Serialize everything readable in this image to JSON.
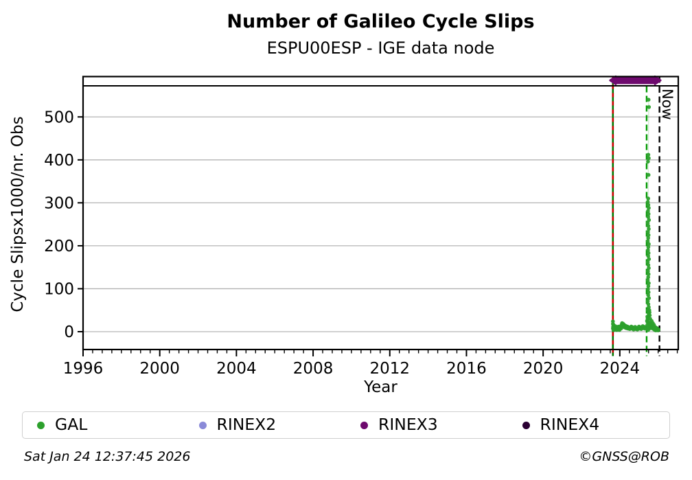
{
  "page": {
    "title": "Number of Galileo Cycle Slips",
    "subtitle": "ESPU00ESP - IGE data node",
    "footer_left": "Sat Jan 24 12:37:45 2026",
    "footer_right": "©GNSS@ROB"
  },
  "legend": {
    "items": [
      {
        "label": "GAL",
        "color": "#2ca02c"
      },
      {
        "label": "RINEX2",
        "color": "#8a8ad8"
      },
      {
        "label": "RINEX3",
        "color": "#6e0a6e"
      },
      {
        "label": "RINEX4",
        "color": "#2b0033"
      }
    ]
  },
  "chart_data": {
    "type": "scatter",
    "title": "Number of Galileo Cycle Slips",
    "subtitle": "ESPU00ESP - IGE data node",
    "xlabel": "Year",
    "ylabel": "Cycle Slipsx1000/nr. Obs",
    "x_ticks": [
      1996,
      2000,
      2004,
      2008,
      2012,
      2016,
      2020,
      2024
    ],
    "x_minor_step": 0.5,
    "x_range": [
      1996,
      2027.05
    ],
    "y_ticks": [
      0,
      100,
      200,
      300,
      400,
      500
    ],
    "y_range": [
      -41,
      572
    ],
    "grid": "horizontal-only",
    "grid_color": "#b3b3b3",
    "legend_position": "below",
    "now_label": "Now",
    "events": [
      {
        "name": "first-data",
        "year": 2023.64,
        "base_color": "#007700",
        "overlay_color": "#cc0000",
        "dash": [
          6,
          6
        ]
      },
      {
        "name": "file-change",
        "year": 2025.4,
        "base_color": "#009900",
        "overlay_color": null,
        "dash": [
          9,
          5
        ]
      },
      {
        "name": "now",
        "year": 2026.07,
        "base_color": "#000000",
        "overlay_color": null,
        "dash": [
          9,
          5.5
        ]
      }
    ],
    "availability_bar": {
      "name": "rinex3-span",
      "start": 2023.5,
      "end": 2026.12,
      "color": "#6e0a6e"
    },
    "series": [
      {
        "name": "GAL",
        "color": "#2ca02c",
        "marker_radius": 2.8,
        "points": [
          [
            2023.64,
            24
          ],
          [
            2023.64,
            18
          ],
          [
            2023.64,
            8
          ],
          [
            2023.65,
            12
          ],
          [
            2023.66,
            5
          ],
          [
            2023.67,
            16
          ],
          [
            2023.68,
            8
          ],
          [
            2023.7,
            4
          ],
          [
            2023.72,
            10
          ],
          [
            2023.74,
            6
          ],
          [
            2023.76,
            13
          ],
          [
            2023.78,
            7
          ],
          [
            2023.8,
            5
          ],
          [
            2023.82,
            9
          ],
          [
            2023.84,
            4
          ],
          [
            2023.86,
            11
          ],
          [
            2023.88,
            6
          ],
          [
            2023.9,
            8
          ],
          [
            2023.92,
            5
          ],
          [
            2023.94,
            12
          ],
          [
            2023.96,
            7
          ],
          [
            2023.98,
            4
          ],
          [
            2024.0,
            9
          ],
          [
            2024.02,
            6
          ],
          [
            2024.05,
            13
          ],
          [
            2024.08,
            8
          ],
          [
            2024.1,
            17
          ],
          [
            2024.12,
            20
          ],
          [
            2024.15,
            14
          ],
          [
            2024.18,
            18
          ],
          [
            2024.2,
            12
          ],
          [
            2024.22,
            16
          ],
          [
            2024.25,
            10
          ],
          [
            2024.28,
            14
          ],
          [
            2024.3,
            9
          ],
          [
            2024.33,
            13
          ],
          [
            2024.36,
            8
          ],
          [
            2024.4,
            12
          ],
          [
            2024.44,
            7
          ],
          [
            2024.48,
            10
          ],
          [
            2024.52,
            6
          ],
          [
            2024.56,
            9
          ],
          [
            2024.6,
            12
          ],
          [
            2024.64,
            7
          ],
          [
            2024.68,
            10
          ],
          [
            2024.72,
            5
          ],
          [
            2024.76,
            8
          ],
          [
            2024.8,
            11
          ],
          [
            2024.84,
            6
          ],
          [
            2024.88,
            9
          ],
          [
            2024.92,
            5
          ],
          [
            2024.96,
            8
          ],
          [
            2025.0,
            12
          ],
          [
            2025.04,
            7
          ],
          [
            2025.08,
            10
          ],
          [
            2025.12,
            6
          ],
          [
            2025.16,
            9
          ],
          [
            2025.2,
            13
          ],
          [
            2025.24,
            8
          ],
          [
            2025.28,
            11
          ],
          [
            2025.32,
            7
          ],
          [
            2025.36,
            10
          ],
          [
            2025.42,
            25
          ],
          [
            2025.43,
            15
          ],
          [
            2025.44,
            35
          ],
          [
            2025.45,
            22
          ],
          [
            2025.5,
            540
          ],
          [
            2025.52,
            523
          ],
          [
            2025.49,
            412
          ],
          [
            2025.51,
            404
          ],
          [
            2025.47,
            396
          ],
          [
            2025.5,
            365
          ],
          [
            2025.48,
            310
          ],
          [
            2025.46,
            302
          ],
          [
            2025.49,
            295
          ],
          [
            2025.51,
            288
          ],
          [
            2025.47,
            281
          ],
          [
            2025.5,
            274
          ],
          [
            2025.48,
            267
          ],
          [
            2025.52,
            260
          ],
          [
            2025.46,
            253
          ],
          [
            2025.49,
            246
          ],
          [
            2025.51,
            239
          ],
          [
            2025.47,
            232
          ],
          [
            2025.5,
            225
          ],
          [
            2025.48,
            218
          ],
          [
            2025.46,
            211
          ],
          [
            2025.51,
            204
          ],
          [
            2025.49,
            197
          ],
          [
            2025.47,
            190
          ],
          [
            2025.5,
            183
          ],
          [
            2025.48,
            176
          ],
          [
            2025.52,
            169
          ],
          [
            2025.46,
            162
          ],
          [
            2025.49,
            155
          ],
          [
            2025.51,
            148
          ],
          [
            2025.47,
            141
          ],
          [
            2025.5,
            134
          ],
          [
            2025.48,
            127
          ],
          [
            2025.46,
            120
          ],
          [
            2025.51,
            113
          ],
          [
            2025.49,
            106
          ],
          [
            2025.47,
            99
          ],
          [
            2025.5,
            92
          ],
          [
            2025.48,
            85
          ],
          [
            2025.52,
            78
          ],
          [
            2025.46,
            71
          ],
          [
            2025.49,
            64
          ],
          [
            2025.51,
            57
          ],
          [
            2025.47,
            50
          ],
          [
            2025.5,
            43
          ],
          [
            2025.48,
            36
          ],
          [
            2025.46,
            29
          ],
          [
            2025.49,
            22
          ],
          [
            2025.51,
            15
          ],
          [
            2025.5,
            8
          ],
          [
            2025.48,
            4
          ],
          [
            2025.54,
            50
          ],
          [
            2025.55,
            45
          ],
          [
            2025.56,
            38
          ],
          [
            2025.57,
            12
          ],
          [
            2025.58,
            30
          ],
          [
            2025.59,
            8
          ],
          [
            2025.6,
            20
          ],
          [
            2025.62,
            18
          ],
          [
            2025.64,
            10
          ],
          [
            2025.66,
            25
          ],
          [
            2025.68,
            15
          ],
          [
            2025.7,
            8
          ],
          [
            2025.72,
            20
          ],
          [
            2025.74,
            12
          ],
          [
            2025.76,
            6
          ],
          [
            2025.78,
            16
          ],
          [
            2025.8,
            9
          ],
          [
            2025.82,
            4
          ],
          [
            2025.84,
            11
          ],
          [
            2025.86,
            7
          ],
          [
            2025.88,
            3
          ],
          [
            2025.9,
            9
          ],
          [
            2025.92,
            5
          ],
          [
            2025.94,
            8
          ],
          [
            2025.96,
            4
          ],
          [
            2025.98,
            6
          ],
          [
            2026.0,
            3
          ],
          [
            2026.02,
            5
          ]
        ]
      }
    ]
  }
}
